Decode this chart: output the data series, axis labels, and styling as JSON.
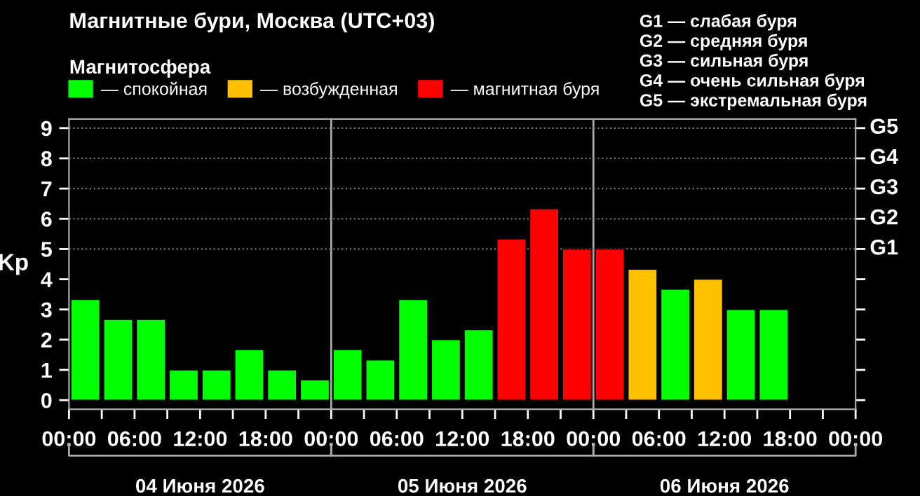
{
  "chart_data": {
    "type": "bar",
    "title": "Магнитные бури, Москва (UTC+03)",
    "legend_title": "Магнитосфера",
    "ylabel": "Kp",
    "x": [
      "2026-06-04T01:30",
      "2026-06-04T04:30",
      "2026-06-04T07:30",
      "2026-06-04T10:30",
      "2026-06-04T13:30",
      "2026-06-04T16:30",
      "2026-06-04T19:30",
      "2026-06-04T22:30",
      "2026-06-05T01:30",
      "2026-06-05T04:30",
      "2026-06-05T07:30",
      "2026-06-05T10:30",
      "2026-06-05T13:30",
      "2026-06-05T16:30",
      "2026-06-05T19:30",
      "2026-06-05T22:30",
      "2026-06-06T01:30",
      "2026-06-06T04:30",
      "2026-06-06T07:30",
      "2026-06-06T10:30",
      "2026-06-06T13:30",
      "2026-06-06T16:30"
    ],
    "series": [
      {
        "name": "— спокойная",
        "color": "#00ff00",
        "values": [
          3.33,
          2.67,
          2.67,
          1,
          1,
          1.67,
          1,
          0.67,
          1.67,
          1.33,
          3.33,
          2,
          2.33,
          null,
          null,
          null,
          null,
          null,
          3.67,
          null,
          3,
          3
        ]
      },
      {
        "name": "— возбужденная",
        "color": "#ffc000",
        "values": [
          null,
          null,
          null,
          null,
          null,
          null,
          null,
          null,
          null,
          null,
          null,
          null,
          null,
          null,
          null,
          null,
          null,
          4.33,
          null,
          4,
          null,
          null
        ]
      },
      {
        "name": "— магнитная буря",
        "color": "#ff0000",
        "values": [
          null,
          null,
          null,
          null,
          null,
          null,
          null,
          null,
          null,
          null,
          null,
          null,
          null,
          5.33,
          6.33,
          5,
          5,
          null,
          null,
          null,
          null,
          null
        ]
      }
    ],
    "xlim": [
      "2026-06-04T00:00",
      "2026-06-07T00:00"
    ],
    "xticks": [
      {
        "value": "2026-06-04T00:00",
        "label": "00:00"
      },
      {
        "value": "2026-06-04T03:00",
        "label": null
      },
      {
        "value": "2026-06-04T06:00",
        "label": "06:00"
      },
      {
        "value": "2026-06-04T09:00",
        "label": null
      },
      {
        "value": "2026-06-04T12:00",
        "label": "12:00"
      },
      {
        "value": "2026-06-04T15:00",
        "label": null
      },
      {
        "value": "2026-06-04T18:00",
        "label": "18:00"
      },
      {
        "value": "2026-06-04T21:00",
        "label": null
      },
      {
        "value": "2026-06-05T00:00",
        "label": "00:00"
      },
      {
        "value": "2026-06-05T03:00",
        "label": null
      },
      {
        "value": "2026-06-05T06:00",
        "label": "06:00"
      },
      {
        "value": "2026-06-05T09:00",
        "label": null
      },
      {
        "value": "2026-06-05T12:00",
        "label": "12:00"
      },
      {
        "value": "2026-06-05T15:00",
        "label": null
      },
      {
        "value": "2026-06-05T18:00",
        "label": "18:00"
      },
      {
        "value": "2026-06-05T21:00",
        "label": null
      },
      {
        "value": "2026-06-06T00:00",
        "label": "00:00"
      },
      {
        "value": "2026-06-06T03:00",
        "label": null
      },
      {
        "value": "2026-06-06T06:00",
        "label": "06:00"
      },
      {
        "value": "2026-06-06T09:00",
        "label": null
      },
      {
        "value": "2026-06-06T12:00",
        "label": "12:00"
      },
      {
        "value": "2026-06-06T15:00",
        "label": null
      },
      {
        "value": "2026-06-06T18:00",
        "label": "18:00"
      },
      {
        "value": "2026-06-06T21:00",
        "label": null
      },
      {
        "value": "2026-06-07T00:00",
        "label": "00:00"
      }
    ],
    "ylim": [
      -0.3,
      9.3
    ],
    "yticks": [
      0,
      1,
      2,
      3,
      4,
      5,
      6,
      7,
      8,
      9
    ],
    "ref_lines": [
      {
        "axis": "x",
        "value": "2026-06-05T00:00",
        "color": "#aaaaaa",
        "line_style": "solid"
      },
      {
        "axis": "x",
        "value": "2026-06-06T00:00",
        "color": "#aaaaaa",
        "line_style": "solid"
      },
      {
        "axis": "y",
        "value": 5,
        "color": "#777777",
        "line_style": "dotted",
        "label": "G1"
      },
      {
        "axis": "y",
        "value": 6,
        "color": "#777777",
        "line_style": "dotted",
        "label": "G2"
      },
      {
        "axis": "y",
        "value": 7,
        "color": "#777777",
        "line_style": "dotted",
        "label": "G3"
      },
      {
        "axis": "y",
        "value": 8,
        "color": "#777777",
        "line_style": "dotted",
        "label": "G4"
      },
      {
        "axis": "y",
        "value": 9,
        "color": "#777777",
        "line_style": "dotted",
        "label": "G5"
      }
    ],
    "annotations": [
      "04 Июня 2026",
      "05 Июня 2026",
      "06 Июня 2026",
      "G1 — слабая буря",
      "G2 — средняя буря",
      "G3 — сильная буря",
      "G4 — очень сильная буря",
      "G5 — экстремальная буря"
    ],
    "legend": "top left"
  }
}
